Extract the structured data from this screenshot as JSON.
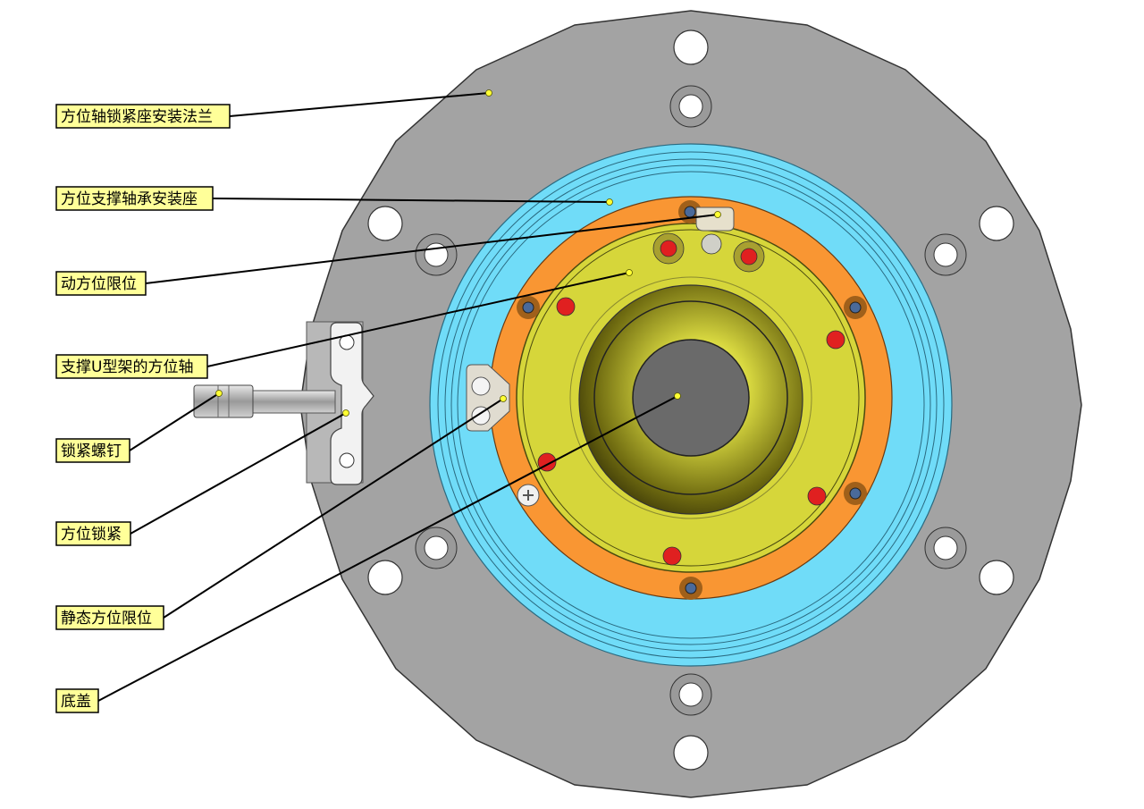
{
  "diagram": {
    "callouts": [
      {
        "id": "flange",
        "label": "方位轴锁紧座安装法兰"
      },
      {
        "id": "bearing-seat",
        "label": "方位支撑轴承安装座"
      },
      {
        "id": "moving-limit",
        "label": "动方位限位"
      },
      {
        "id": "u-frame-shaft",
        "label": "支撑U型架的方位轴"
      },
      {
        "id": "lock-screw",
        "label": "锁紧螺钉"
      },
      {
        "id": "azimuth-lock",
        "label": "方位锁紧"
      },
      {
        "id": "static-limit",
        "label": "静态方位限位"
      },
      {
        "id": "bottom-cover",
        "label": "底盖"
      }
    ],
    "colors": {
      "flange": "#a3a3a3",
      "bearing_seat": "#70dcf8",
      "orange_ring": "#f99633",
      "yellow_plate": "#d6d63a",
      "callout_fill": "#ffff99"
    }
  }
}
